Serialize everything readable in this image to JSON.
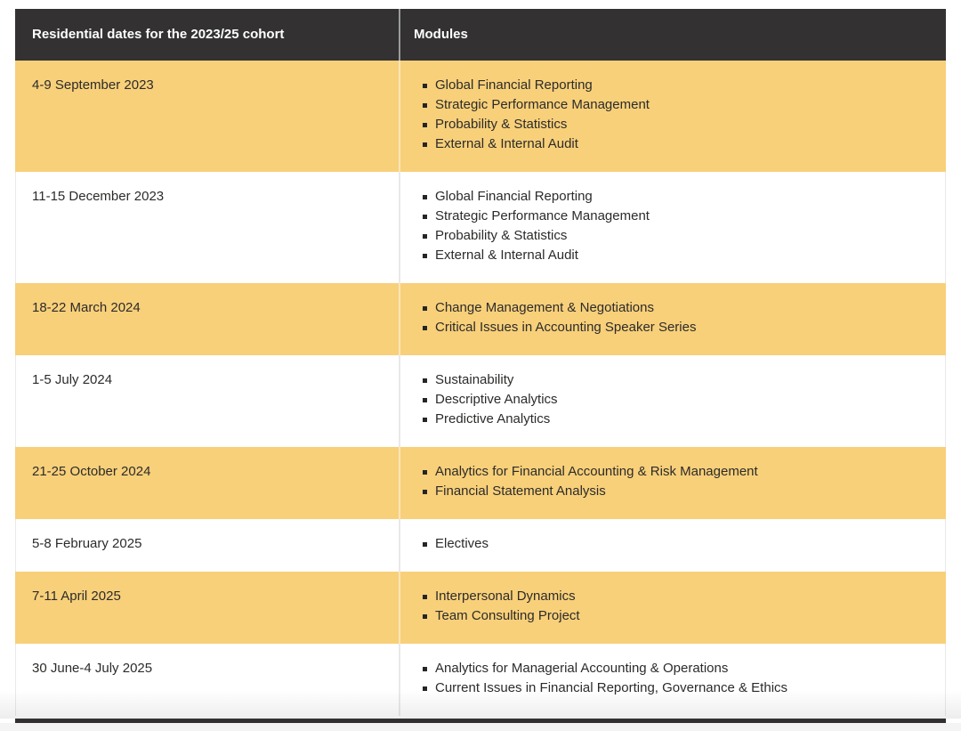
{
  "table": {
    "columns": [
      {
        "label": "Residential dates for the 2023/25 cohort"
      },
      {
        "label": "Modules"
      }
    ],
    "rows": [
      {
        "date": "4-9 September 2023",
        "highlight": true,
        "modules": [
          "Global Financial Reporting",
          "Strategic Performance Management",
          "Probability & Statistics",
          "External & Internal Audit"
        ]
      },
      {
        "date": "11-15 December 2023",
        "highlight": false,
        "modules": [
          "Global Financial Reporting",
          "Strategic Performance Management",
          "Probability & Statistics",
          "External & Internal Audit"
        ]
      },
      {
        "date": "18-22 March 2024",
        "highlight": true,
        "modules": [
          "Change Management & Negotiations",
          "Critical Issues in Accounting Speaker Series"
        ]
      },
      {
        "date": "1-5 July 2024",
        "highlight": false,
        "modules": [
          "Sustainability",
          "Descriptive Analytics",
          "Predictive Analytics"
        ]
      },
      {
        "date": "21-25 October 2024",
        "highlight": true,
        "modules": [
          "Analytics for Financial Accounting & Risk Management",
          "Financial Statement Analysis"
        ]
      },
      {
        "date": "5-8 February 2025",
        "highlight": false,
        "modules": [
          "Electives"
        ]
      },
      {
        "date": "7-11 April 2025",
        "highlight": true,
        "modules": [
          "Interpersonal Dynamics",
          "Team Consulting Project"
        ]
      },
      {
        "date": "30 June-4 July 2025",
        "highlight": false,
        "modules": [
          "Analytics for Managerial Accounting & Operations",
          "Current Issues in Financial Reporting, Governance & Ethics"
        ]
      }
    ],
    "colors": {
      "header_bg": "#333132",
      "header_text": "#ffffff",
      "highlight_row_bg": "#f8d07a",
      "plain_row_bg": "#ffffff",
      "body_text": "#2c2b2a",
      "divider": "#e9e9e9",
      "bottom_bar": "#323031",
      "bottom_strip": "#f4f4f4"
    }
  }
}
